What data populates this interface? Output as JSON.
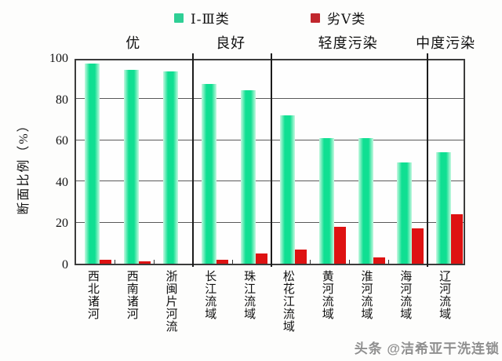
{
  "legend": {
    "series1": {
      "label": "Ⅰ-Ⅲ类",
      "color": "#2fcf95"
    },
    "series2": {
      "label": "劣Ⅴ类",
      "color": "#c1272d"
    }
  },
  "watermark": {
    "text": "头条 @洁希亚干洗连锁"
  },
  "chart_data": {
    "type": "bar",
    "title": "",
    "ylabel": "断面比例（%）",
    "xlabel": "",
    "ylim": [
      0,
      100
    ],
    "yticks": [
      0,
      20,
      40,
      60,
      80,
      100
    ],
    "grid": true,
    "legend_position": "top",
    "categories": [
      "西北诸河",
      "西南诸河",
      "浙闽片河流",
      "长江流域",
      "珠江流域",
      "松花江流域",
      "黄河流域",
      "淮河流域",
      "海河流域",
      "辽河流域"
    ],
    "series": [
      {
        "name": "Ⅰ-Ⅲ类",
        "color_core": "#10df92",
        "color_edge": "#c6f8e0",
        "values": [
          97,
          94,
          93,
          87,
          84,
          72,
          61,
          61,
          49,
          54
        ]
      },
      {
        "name": "劣Ⅴ类",
        "color": "#de1212",
        "values": [
          2,
          1,
          0,
          2,
          5,
          7,
          18,
          3,
          17,
          24
        ]
      }
    ],
    "bands": [
      {
        "label": "优",
        "from": 0,
        "to": 2
      },
      {
        "label": "良好",
        "from": 3,
        "to": 4
      },
      {
        "label": "轻度污染",
        "from": 5,
        "to": 8
      },
      {
        "label": "中度污染",
        "from": 9,
        "to": 9
      }
    ]
  }
}
